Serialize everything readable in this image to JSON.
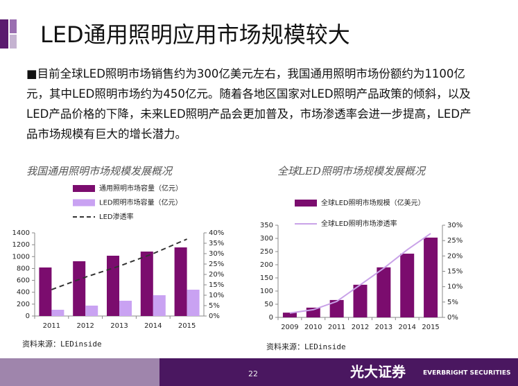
{
  "title": "LED通用照明应用市场规模较大",
  "paragraph": "■目前全球LED照明市场销售约为300亿美元左右，我国通用照明市场份额约为1100亿元，其中LED照明市场约为450亿元。随着各地区国家对LED照明产品政策的倾斜，以及LED产品价格的下降，未来LED照明产品会更加普及，市场渗透率会进一步提高，LED产品市场规模有巨大的增长潜力。",
  "chart_data": [
    {
      "type": "combo",
      "title": "我国通用照明市场规模发展概况",
      "categories": [
        "2011",
        "2012",
        "2013",
        "2014",
        "2015"
      ],
      "series": [
        {
          "name": "通用照明市场容量（亿元）",
          "type": "bar",
          "color": "#7b0c6e",
          "values": [
            817,
            922,
            1015,
            1085,
            1155
          ]
        },
        {
          "name": "LED照明市场容量（亿元）",
          "type": "bar",
          "color": "#c9a2f2",
          "values": [
            105,
            175,
            257,
            350,
            443
          ]
        },
        {
          "name": "LED渗透率",
          "type": "line",
          "dash": true,
          "color": "#333333",
          "axis": "y2",
          "values": [
            12.7,
            18.7,
            24,
            30,
            37
          ]
        }
      ],
      "ylim": [
        0,
        1400
      ],
      "yticks": [
        0,
        200,
        400,
        600,
        800,
        1000,
        1200,
        1400
      ],
      "y2lim": [
        0,
        40
      ],
      "y2ticks": [
        {
          "value": 0,
          "label": "0%"
        },
        {
          "value": 5,
          "label": "5%"
        },
        {
          "value": 10,
          "label": "10%"
        },
        {
          "value": 15,
          "label": "15%"
        },
        {
          "value": 20,
          "label": "20%"
        },
        {
          "value": 25,
          "label": "25%"
        },
        {
          "value": 30,
          "label": "30%"
        },
        {
          "value": 35,
          "label": "35%"
        },
        {
          "value": 40,
          "label": "40%"
        }
      ],
      "source": "资料来源：LEDinside"
    },
    {
      "type": "combo",
      "title": "全球LED照明市场规模发展概况",
      "categories": [
        "2009",
        "2010",
        "2011",
        "2012",
        "2013",
        "2014",
        "2015"
      ],
      "series": [
        {
          "name": "全球LED照明市场规模（亿美元）",
          "type": "bar",
          "color": "#7b0c6e",
          "values": [
            18,
            37,
            66,
            124,
            190,
            242,
            303
          ]
        },
        {
          "name": "全球LED照明市场渗透率",
          "type": "line",
          "dash": false,
          "color": "#c9a2e8",
          "axis": "y2",
          "values": [
            1.4,
            2.5,
            5.2,
            10.6,
            16,
            22,
            27.3
          ]
        }
      ],
      "ylim": [
        0,
        350
      ],
      "yticks": [
        0,
        50,
        100,
        150,
        200,
        250,
        300,
        350
      ],
      "y2lim": [
        0,
        30
      ],
      "y2ticks": [
        {
          "value": 0,
          "label": "0%"
        },
        {
          "value": 5,
          "label": "5%"
        },
        {
          "value": 10,
          "label": "10%"
        },
        {
          "value": 15,
          "label": "15%"
        },
        {
          "value": 20,
          "label": "20%"
        },
        {
          "value": 25,
          "label": "25%"
        },
        {
          "value": 30,
          "label": "30%"
        }
      ],
      "source": "资料来源：LEDinside"
    }
  ],
  "page_number": "22",
  "logo": {
    "name": "光大证券",
    "english": "EVERBRIGHT SECURITIES"
  }
}
